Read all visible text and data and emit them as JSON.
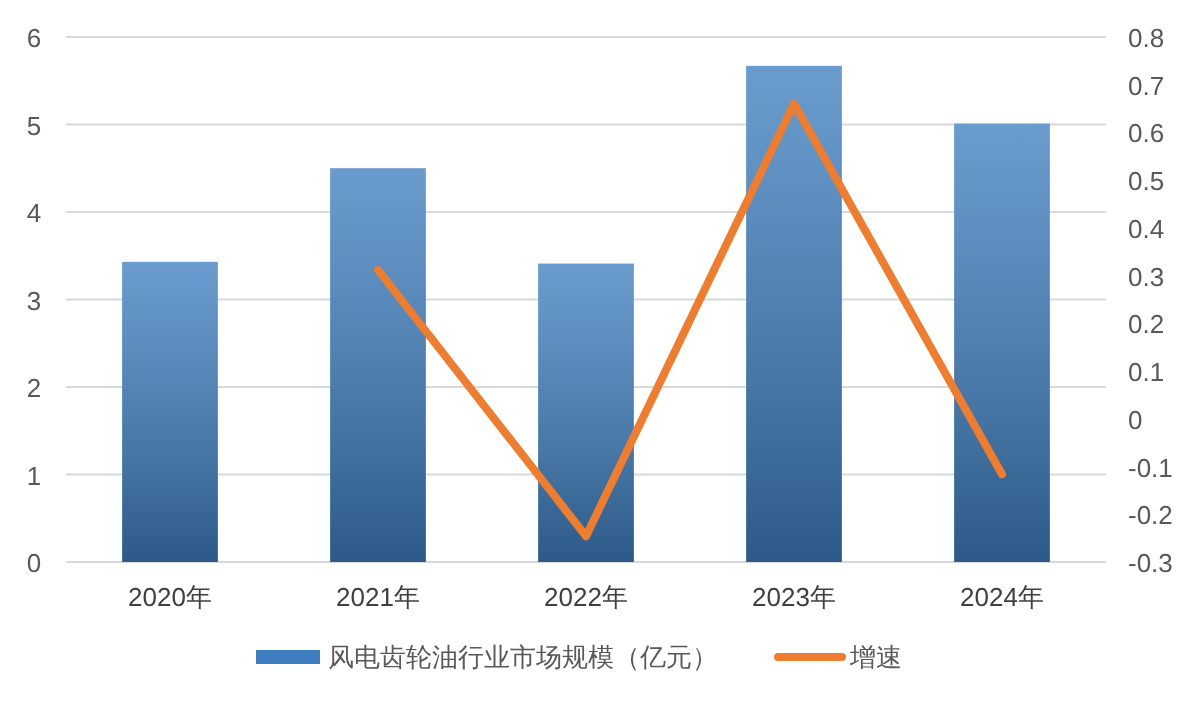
{
  "chart_data": {
    "type": "bar",
    "categories": [
      "2020年",
      "2021年",
      "2022年",
      "2023年",
      "2024年"
    ],
    "series": [
      {
        "name": "风电齿轮油行业市场规模（亿元）",
        "color": "#3f7fc0",
        "values": [
          3.43,
          4.5,
          3.41,
          5.67,
          5.01
        ]
      },
      {
        "name": "增速",
        "type": "line",
        "axis": "y2",
        "color": "#ed7d31",
        "values": [
          null,
          0.312,
          -0.246,
          0.66,
          -0.116
        ]
      }
    ],
    "ylim": [
      0,
      6
    ],
    "yticks": [
      0,
      1,
      2,
      3,
      4,
      5,
      6
    ],
    "y2lim": [
      -0.3,
      0.8
    ],
    "y2ticks": [
      -0.3,
      -0.2,
      -0.1,
      0,
      0.1,
      0.2,
      0.3,
      0.4,
      0.5,
      0.6,
      0.7,
      0.8
    ],
    "grid": "y",
    "legend": "bottom",
    "marker": "none",
    "line_style": "solid"
  }
}
